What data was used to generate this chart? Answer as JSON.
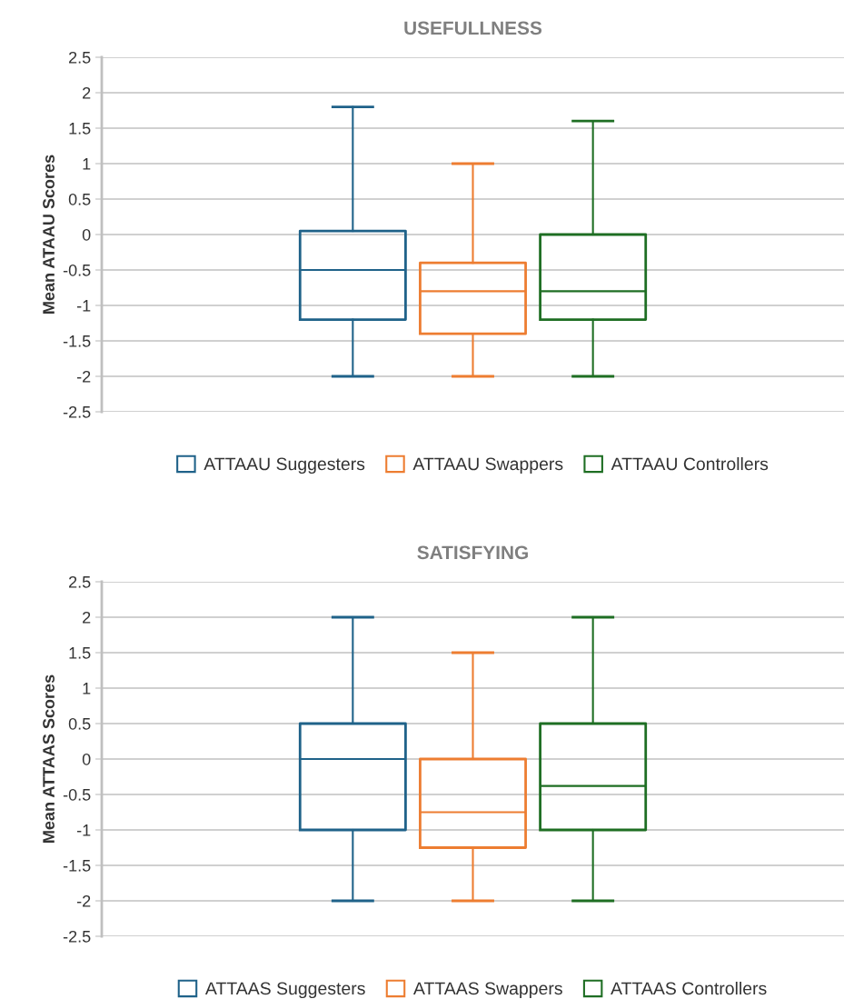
{
  "chart_data": [
    {
      "type": "box",
      "title": "USEFULLNESS",
      "ylabel": "Mean ATAAU Scores",
      "categories": [
        null
      ],
      "ylim": [
        -2.5,
        2.5
      ],
      "yticks": [
        -2.5,
        -2,
        -1.5,
        -1,
        -0.5,
        0,
        0.5,
        1,
        1.5,
        2,
        2.5
      ],
      "grid": "y",
      "legend": "bottom",
      "series": [
        {
          "name": "ATTAAU Suggesters",
          "color": "#1f6289",
          "boxes": [
            {
              "low": -2,
              "q1": -1.2,
              "median": -0.5,
              "q3": 0.05,
              "high": 1.8
            }
          ]
        },
        {
          "name": "ATTAAU Swappers",
          "color": "#ed7d31",
          "boxes": [
            {
              "low": -2,
              "q1": -1.4,
              "median": -0.8,
              "q3": -0.4,
              "high": 1
            }
          ]
        },
        {
          "name": "ATTAAU Controllers",
          "color": "#1e6e23",
          "boxes": [
            {
              "low": -2,
              "q1": -1.2,
              "median": -0.8,
              "q3": 0,
              "high": 1.6
            }
          ]
        }
      ]
    },
    {
      "type": "box",
      "title": "SATISFYING",
      "ylabel": "Mean ATTAAS Scores",
      "categories": [
        null
      ],
      "ylim": [
        -2.5,
        2.5
      ],
      "yticks": [
        -2.5,
        -2,
        -1.5,
        -1,
        -0.5,
        0,
        0.5,
        1,
        1.5,
        2,
        2.5
      ],
      "grid": "y",
      "legend": "bottom",
      "series": [
        {
          "name": "ATTAAS Suggesters",
          "color": "#1f6289",
          "boxes": [
            {
              "low": -2,
              "q1": -1,
              "median": 0,
              "q3": 0.5,
              "high": 2
            }
          ]
        },
        {
          "name": "ATTAAS Swappers",
          "color": "#ed7d31",
          "boxes": [
            {
              "low": -2,
              "q1": -1.25,
              "median": -0.75,
              "q3": 0,
              "high": 1.5
            }
          ]
        },
        {
          "name": "ATTAAS Controllers",
          "color": "#1e6e23",
          "boxes": [
            {
              "low": -2,
              "q1": -1,
              "median": -0.38,
              "q3": 0.5,
              "high": 2
            }
          ]
        }
      ]
    }
  ]
}
